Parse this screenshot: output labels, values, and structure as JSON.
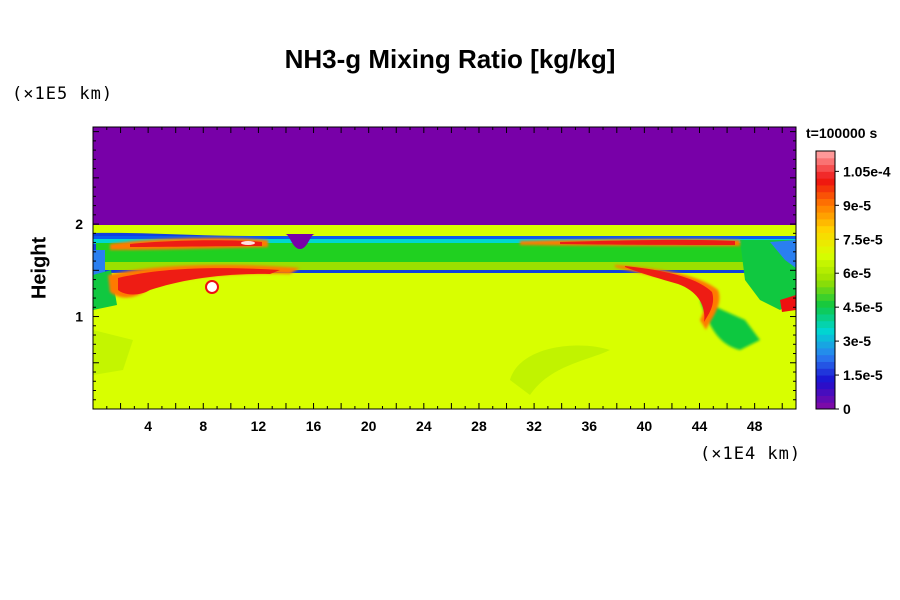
{
  "chart_data": {
    "type": "heatmap",
    "title": "NH3-g Mixing Ratio [kg/kg]",
    "ylabel": "Height",
    "x_unit_label": "(×1E4 km)",
    "y_unit_label": "(×1E5 km)",
    "time_label": "t=100000 s",
    "xlim": [
      0,
      51
    ],
    "ylim": [
      0,
      3.05
    ],
    "x_ticks": [
      4,
      8,
      12,
      16,
      20,
      24,
      28,
      32,
      36,
      40,
      44,
      48
    ],
    "y_ticks": [
      1,
      2
    ],
    "colorbar": {
      "min": 0,
      "max": 0.000114,
      "labels": [
        {
          "value": 0,
          "text": "0"
        },
        {
          "value": 1.5e-05,
          "text": "1.5e-5"
        },
        {
          "value": 3e-05,
          "text": "3e-5"
        },
        {
          "value": 4.5e-05,
          "text": "4.5e-5"
        },
        {
          "value": 6e-05,
          "text": "6e-5"
        },
        {
          "value": 7.5e-05,
          "text": "7.5e-5"
        },
        {
          "value": 9e-05,
          "text": "9e-5"
        },
        {
          "value": 0.000105,
          "text": "1.05e-4"
        }
      ],
      "colors": [
        "#7b0aa8",
        "#1a0fd0",
        "#2a7ff0",
        "#00d7d0",
        "#10c840",
        "#9be000",
        "#d8ff00",
        "#ffd400",
        "#ff7a00",
        "#ee1010",
        "#ff9898"
      ]
    },
    "field_colors": {
      "upper_layer": "#7800a8",
      "lower_bulk": "#d8ff00",
      "band": "#20d020",
      "blue_edge": "#1040e0",
      "max_streak": "#ee1c14"
    }
  }
}
